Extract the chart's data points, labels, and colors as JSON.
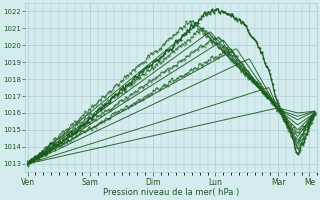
{
  "title": "",
  "xlabel": "Pression niveau de la mer( hPa )",
  "ylabel": "",
  "bg_color": "#d4ecee",
  "grid_color": "#aacdd0",
  "line_color": "#1a5c1a",
  "ylim": [
    1012.5,
    1022.5
  ],
  "yticks": [
    1013,
    1014,
    1015,
    1016,
    1017,
    1018,
    1019,
    1020,
    1021,
    1022
  ],
  "day_labels": [
    "Ven",
    "Sam",
    "Dim",
    "Lun",
    "Mar",
    "Me"
  ],
  "day_positions": [
    0,
    48,
    96,
    144,
    192,
    216
  ],
  "xlim": [
    -2,
    222
  ],
  "num_steps": 220
}
